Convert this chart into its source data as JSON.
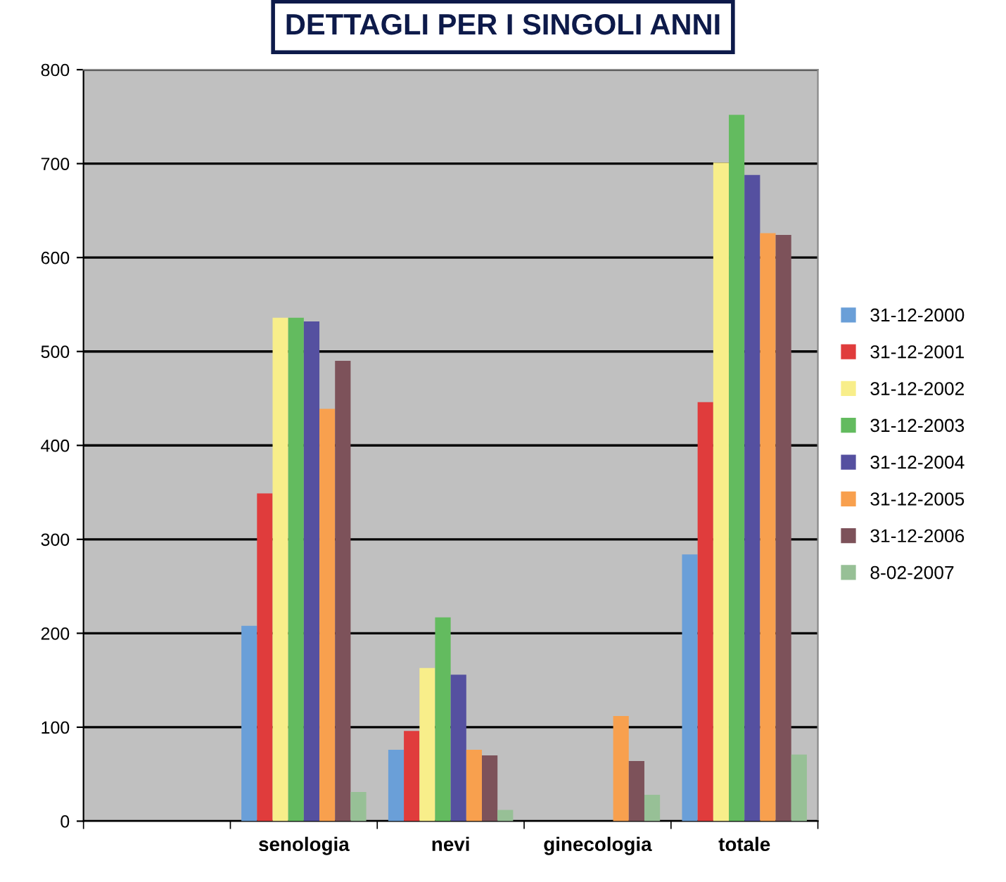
{
  "chart_data": {
    "type": "bar",
    "title": "DETTAGLI PER I SINGOLI ANNI",
    "categories": [
      null,
      "senologia",
      "nevi",
      "ginecologia",
      "totale"
    ],
    "series": [
      {
        "name": "31-12-2000",
        "color": "#6a9fd8",
        "values": [
          null,
          208,
          76,
          null,
          284
        ]
      },
      {
        "name": "31-12-2001",
        "color": "#e03c3c",
        "values": [
          null,
          349,
          96,
          null,
          446
        ]
      },
      {
        "name": "31-12-2002",
        "color": "#f8ee8a",
        "values": [
          null,
          536,
          163,
          null,
          701
        ]
      },
      {
        "name": "31-12-2003",
        "color": "#63bb5f",
        "values": [
          null,
          536,
          217,
          null,
          752
        ]
      },
      {
        "name": "31-12-2004",
        "color": "#5550a0",
        "values": [
          null,
          532,
          156,
          null,
          688
        ]
      },
      {
        "name": "31-12-2005",
        "color": "#f8a04e",
        "values": [
          null,
          439,
          76,
          112,
          626
        ]
      },
      {
        "name": "31-12-2006",
        "color": "#7d525a",
        "values": [
          null,
          490,
          70,
          64,
          624
        ]
      },
      {
        "name": "8-02-2007",
        "color": "#97c096",
        "values": [
          null,
          31,
          12,
          28,
          71
        ]
      }
    ],
    "ylim": [
      0,
      800
    ],
    "yticks": [
      0,
      100,
      200,
      300,
      400,
      500,
      600,
      700,
      800
    ],
    "grid": "y",
    "legend": "right"
  }
}
